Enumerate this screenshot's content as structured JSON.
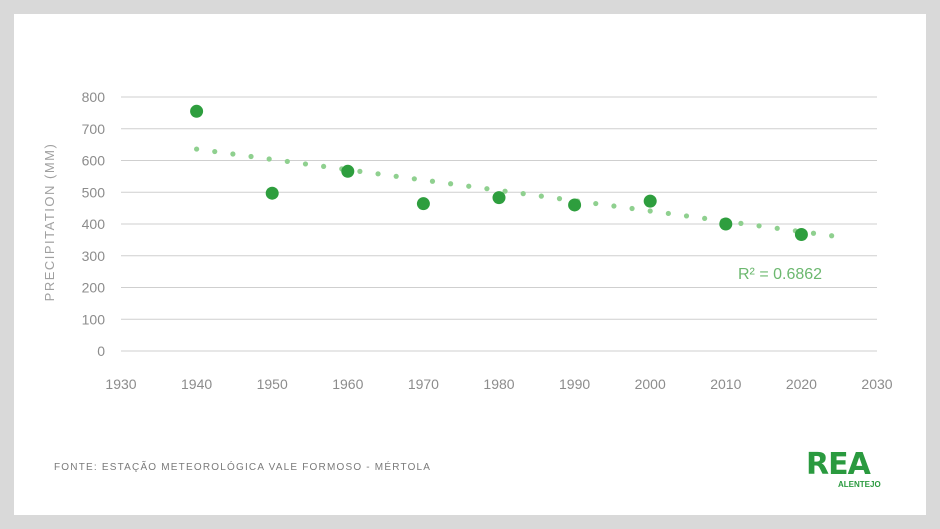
{
  "chart_data": {
    "type": "scatter",
    "ylabel": "PRECIPITATION (MM)",
    "xlim": [
      1930,
      2030
    ],
    "ylim": [
      0,
      800
    ],
    "xticks": [
      "1930",
      "1940",
      "1950",
      "1960",
      "1970",
      "1980",
      "1990",
      "2000",
      "2010",
      "2020",
      "2030"
    ],
    "yticks": [
      "0",
      "100",
      "200",
      "300",
      "400",
      "500",
      "600",
      "700",
      "800"
    ],
    "grid": "horizontal",
    "series": [
      {
        "points": [
          [
            1940,
            755
          ],
          [
            1950,
            497
          ],
          [
            1960,
            566
          ],
          [
            1970,
            464
          ],
          [
            1980,
            483
          ],
          [
            1990,
            460
          ],
          [
            2000,
            472
          ],
          [
            2010,
            400
          ],
          [
            2020,
            367
          ]
        ],
        "color": "#2e9e3e"
      }
    ],
    "trendline": {
      "type": "linear",
      "x": [
        1940,
        2024
      ],
      "y": [
        636,
        363
      ],
      "r2_label": "R² = 0.6862",
      "color": "#8fd08f"
    }
  },
  "footer": {
    "source": "FONTE: ESTAÇÃO METEOROLÓGICA VALE FORMOSO - MÉRTOLA",
    "logo_main": "REA",
    "logo_sub": "ALENTEJO"
  }
}
